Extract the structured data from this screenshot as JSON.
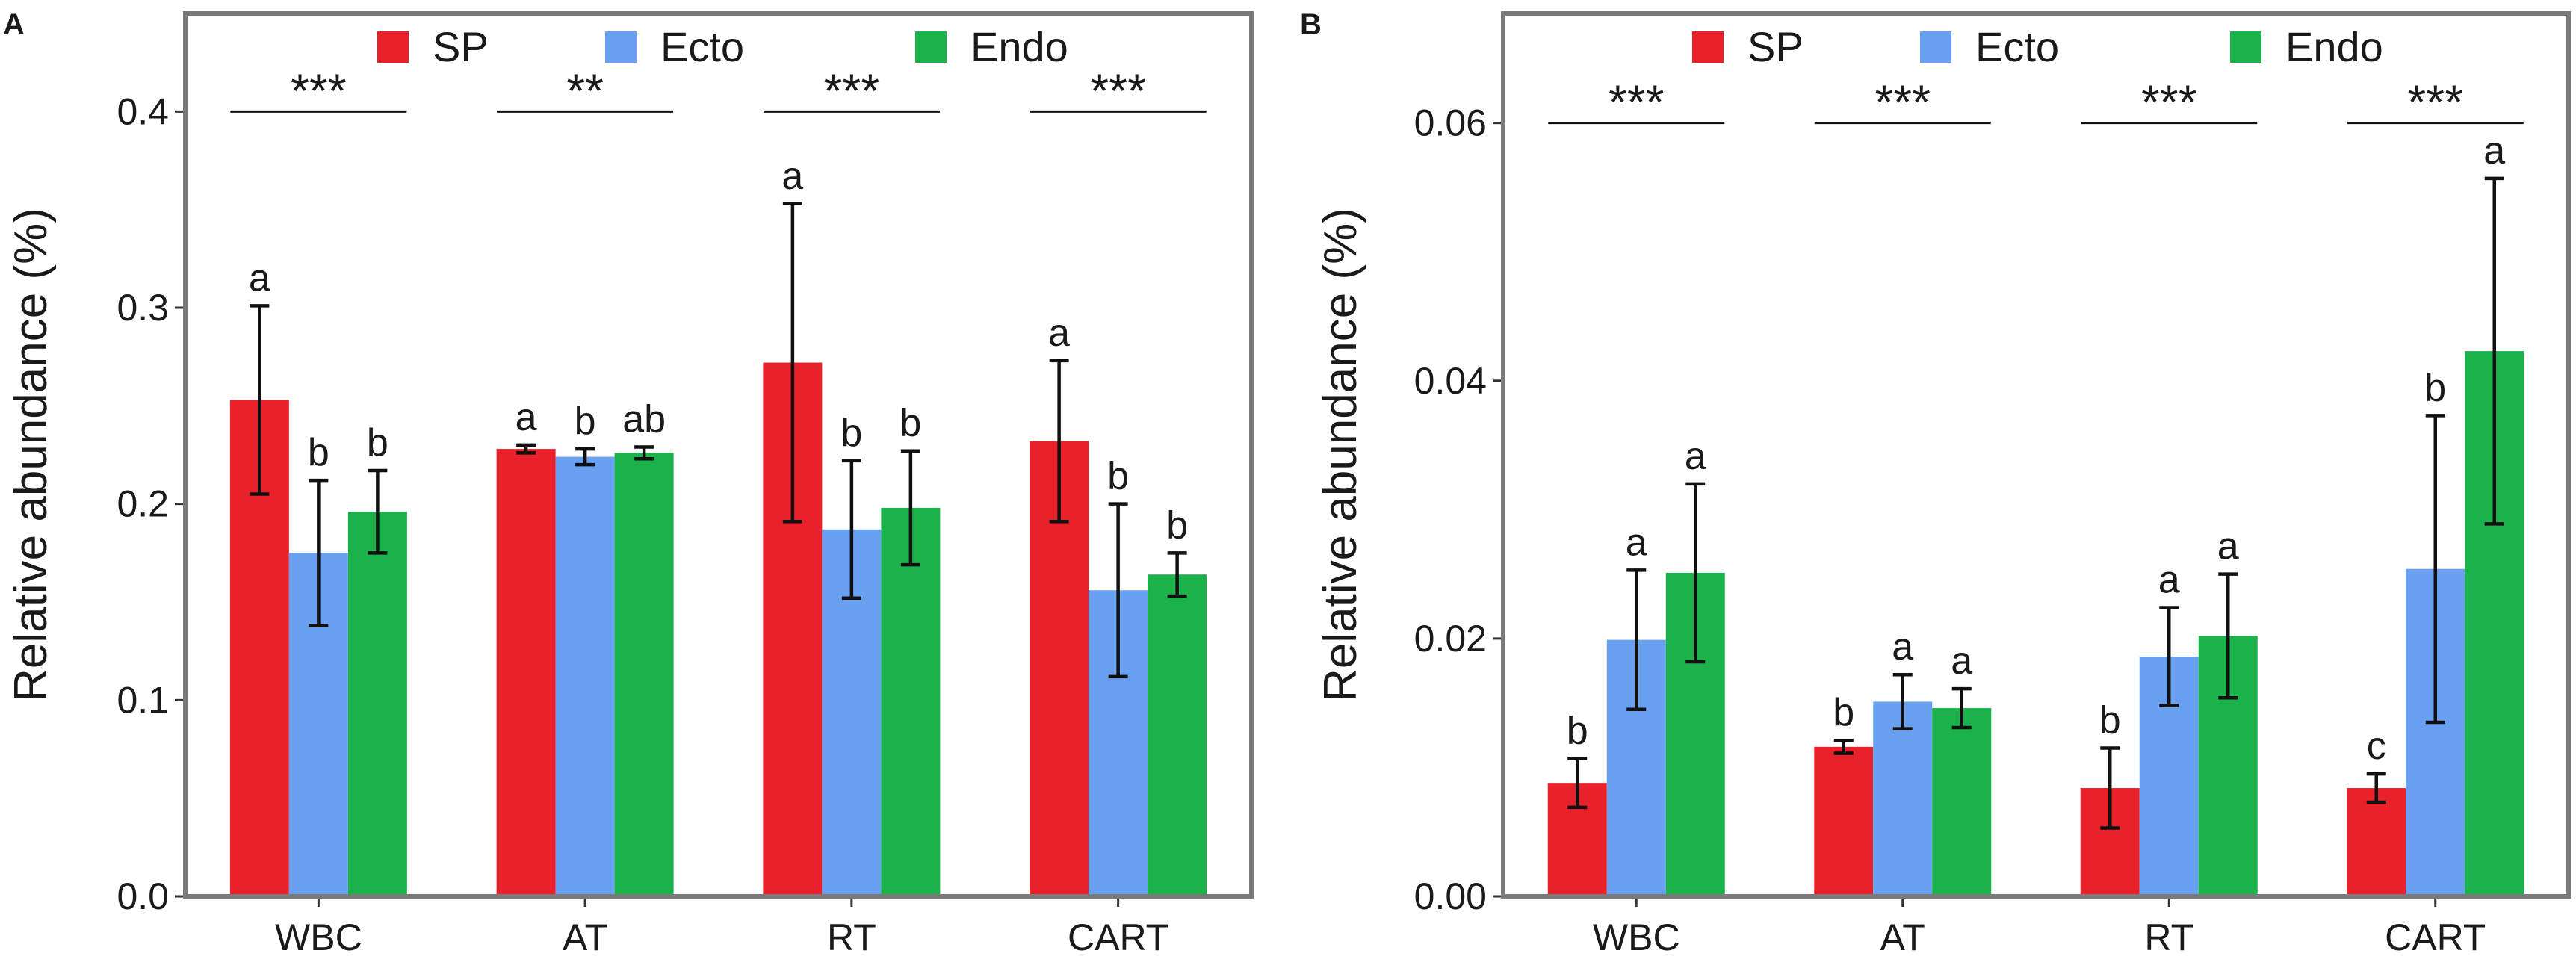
{
  "chart_data": [
    {
      "panel": "A",
      "type": "bar",
      "categories": [
        "WBC",
        "AT",
        "RT",
        "CART"
      ],
      "ylabel": "Relative abundance (%)",
      "ylim": [
        0.0,
        0.45
      ],
      "yticks": [
        "0.0",
        "0.1",
        "0.2",
        "0.3",
        "0.4"
      ],
      "legend": [
        "SP",
        "Ecto",
        "Endo"
      ],
      "legend_position": "top",
      "series": [
        {
          "name": "SP",
          "color": "#e8212b",
          "values": [
            0.253,
            0.228,
            0.272,
            0.232
          ],
          "err": [
            0.048,
            0.002,
            0.081,
            0.041
          ],
          "letters": [
            "a",
            "a",
            "a",
            "a"
          ]
        },
        {
          "name": "Ecto",
          "color": "#6aa0f0",
          "values": [
            0.175,
            0.224,
            0.187,
            0.156
          ],
          "err": [
            0.037,
            0.004,
            0.035,
            0.044
          ],
          "letters": [
            "b",
            "b",
            "b",
            "b"
          ]
        },
        {
          "name": "Endo",
          "color": "#1bb24b",
          "values": [
            0.196,
            0.226,
            0.198,
            0.164
          ],
          "err": [
            0.021,
            0.003,
            0.029,
            0.011
          ],
          "letters": [
            "b",
            "ab",
            "b",
            "b"
          ]
        }
      ],
      "significance": [
        "***",
        "**",
        "***",
        "***"
      ],
      "significance_y": 0.4
    },
    {
      "panel": "B",
      "type": "bar",
      "categories": [
        "WBC",
        "AT",
        "RT",
        "CART"
      ],
      "ylabel": "Relative abundance (%)",
      "ylim": [
        0.0,
        0.0685
      ],
      "yticks": [
        "0.00",
        "0.02",
        "0.04",
        "0.06"
      ],
      "legend": [
        "SP",
        "Ecto",
        "Endo"
      ],
      "legend_position": "top",
      "series": [
        {
          "name": "SP",
          "color": "#e8212b",
          "values": [
            0.0088,
            0.0116,
            0.0084,
            0.0084
          ],
          "err": [
            0.0019,
            0.0005,
            0.0031,
            0.0011
          ],
          "letters": [
            "b",
            "b",
            "b",
            "c"
          ]
        },
        {
          "name": "Ecto",
          "color": "#6aa0f0",
          "values": [
            0.0199,
            0.0151,
            0.0186,
            0.0254
          ],
          "err": [
            0.0054,
            0.0021,
            0.0038,
            0.0119
          ],
          "letters": [
            "a",
            "a",
            "a",
            "b"
          ]
        },
        {
          "name": "Endo",
          "color": "#1bb24b",
          "values": [
            0.0251,
            0.0146,
            0.0202,
            0.0423
          ],
          "err": [
            0.0069,
            0.0015,
            0.0048,
            0.0134
          ],
          "letters": [
            "a",
            "a",
            "a",
            "a"
          ]
        }
      ],
      "significance": [
        "***",
        "***",
        "***",
        "***"
      ],
      "significance_y": 0.06
    }
  ]
}
